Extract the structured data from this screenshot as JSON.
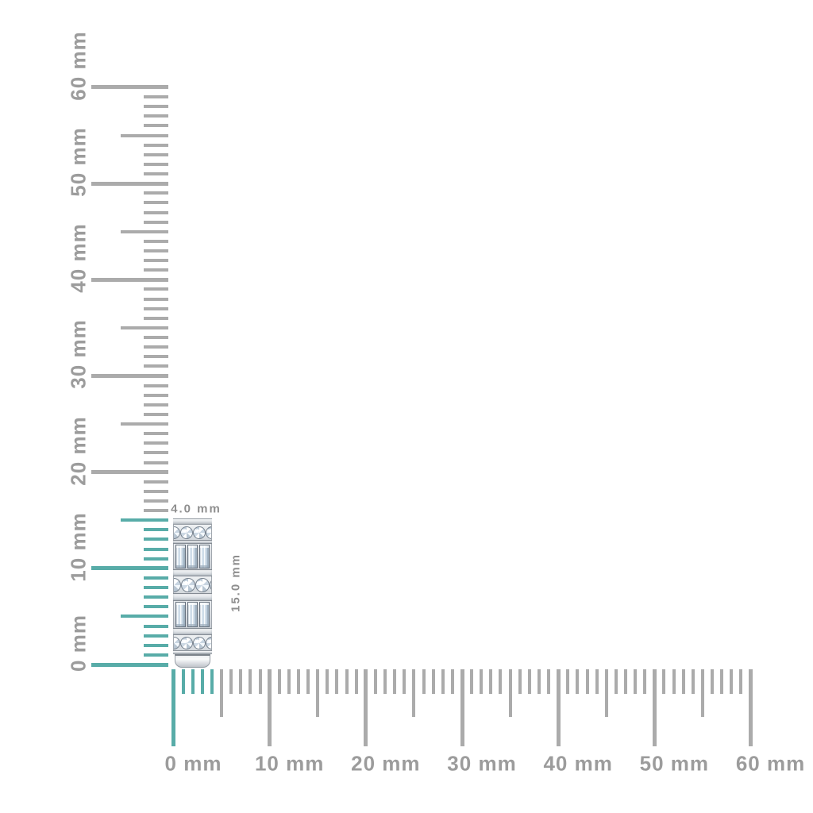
{
  "background": "#ffffff",
  "colors": {
    "tick_gray": "#ababab",
    "tick_highlight_teal": "#58aca8",
    "axis_label_gray": "#9c9c9c",
    "dimension_label_gray": "#8f8f8f"
  },
  "rulers": {
    "unit": "mm",
    "vertical": {
      "min": 0,
      "max": 60,
      "step": 1,
      "mid_every": 5,
      "major_every": 10,
      "highlight_from": 0,
      "highlight_to": 15,
      "labels": [
        {
          "mm": 0,
          "text": "0 mm"
        },
        {
          "mm": 10,
          "text": "10 mm"
        },
        {
          "mm": 20,
          "text": "20 mm"
        },
        {
          "mm": 30,
          "text": "30 mm"
        },
        {
          "mm": 40,
          "text": "40 mm"
        },
        {
          "mm": 50,
          "text": "50 mm"
        },
        {
          "mm": 60,
          "text": "60 mm"
        }
      ]
    },
    "horizontal": {
      "min": 0,
      "max": 60,
      "step": 1,
      "mid_every": 5,
      "major_every": 10,
      "highlight_from": 0,
      "highlight_to": 4,
      "labels": [
        {
          "mm": 0,
          "text": "0 mm"
        },
        {
          "mm": 10,
          "text": "10 mm"
        },
        {
          "mm": 20,
          "text": "20 mm"
        },
        {
          "mm": 30,
          "text": "30 mm"
        },
        {
          "mm": 40,
          "text": "40 mm"
        },
        {
          "mm": 50,
          "text": "50 mm"
        },
        {
          "mm": 60,
          "text": "60 mm"
        }
      ]
    }
  },
  "item": {
    "type": "diamond-eternity-band-side-view",
    "width_mm": 4.0,
    "height_mm": 15.0,
    "width_label": "4.0 mm",
    "height_label": "15.0 mm",
    "segments": [
      {
        "type": "rim",
        "h": 8
      },
      {
        "type": "rounds",
        "h": 19,
        "stones": 2
      },
      {
        "type": "bar",
        "h": 5
      },
      {
        "type": "baguettes",
        "h": 32,
        "stones": 3
      },
      {
        "type": "bar",
        "h": 9
      },
      {
        "type": "rounds",
        "h": 21,
        "stones": 2
      },
      {
        "type": "bar",
        "h": 10
      },
      {
        "type": "baguettes",
        "h": 34,
        "stones": 3
      },
      {
        "type": "bar",
        "h": 9
      },
      {
        "type": "rounds",
        "h": 19,
        "stones": 2
      },
      {
        "type": "rim",
        "h": 5
      },
      {
        "type": "shank",
        "h": 17
      }
    ]
  }
}
